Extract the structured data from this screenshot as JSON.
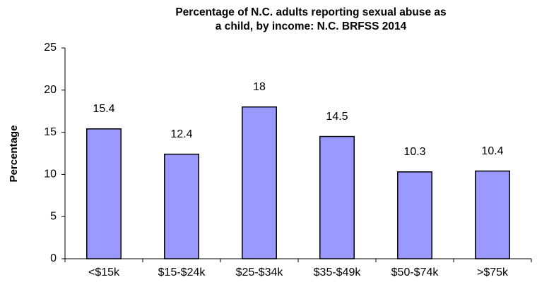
{
  "chart_data": {
    "type": "bar",
    "title": [
      "Percentage of N.C. adults reporting sexual abuse as",
      "a child, by income: N.C. BRFSS 2014"
    ],
    "y_label": "Percentage",
    "categories": [
      "<$15k",
      "$15-$24k",
      "$25-$34k",
      "$35-$49k",
      "$50-$74k",
      ">$75k"
    ],
    "values": [
      15.4,
      12.4,
      18,
      14.5,
      10.3,
      10.4
    ],
    "color": "#9999ff",
    "ylim": [
      0,
      25
    ],
    "yticks": [
      0,
      5,
      10,
      15,
      20,
      25
    ],
    "grid": false
  }
}
